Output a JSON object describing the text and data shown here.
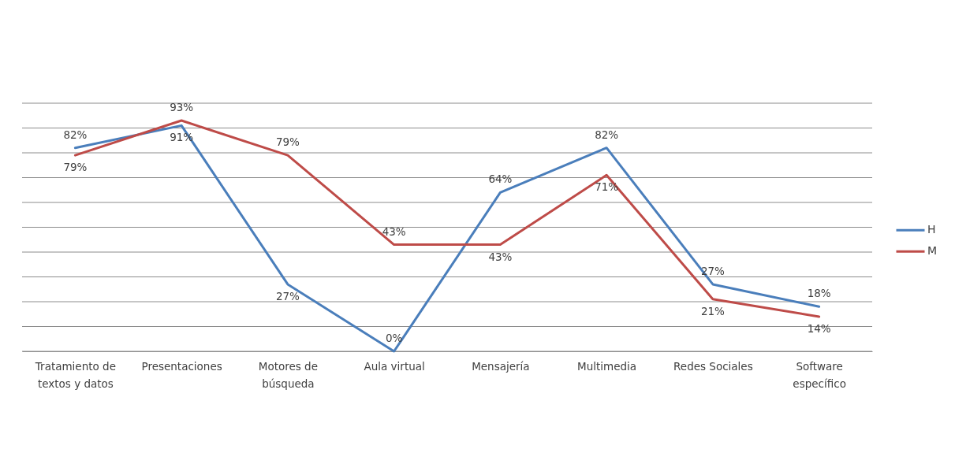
{
  "chart_data": {
    "type": "line",
    "categories": [
      "Tratamiento de textos y datos",
      "Presentaciones",
      "Motores de búsqueda",
      "Aula virtual",
      "Mensajería",
      "Multimedia",
      "Redes Sociales",
      "Software específico"
    ],
    "series": [
      {
        "name": "H",
        "color": "#4a7ebb",
        "values": [
          82,
          91,
          27,
          0,
          64,
          82,
          27,
          18
        ],
        "value_labels": [
          "82%",
          "91%",
          "27%",
          "0%",
          "64%",
          "82%",
          "27%",
          "18%"
        ]
      },
      {
        "name": "M",
        "color": "#be4b48",
        "values": [
          79,
          93,
          79,
          43,
          43,
          71,
          21,
          14
        ],
        "value_labels": [
          "79%",
          "93%",
          "79%",
          "43%",
          "43%",
          "71%",
          "21%",
          "14%"
        ]
      }
    ],
    "ylim": [
      0,
      100
    ],
    "yticks": [
      {
        "value": 0,
        "label": null
      },
      {
        "value": 10,
        "label": null
      },
      {
        "value": 20,
        "label": null
      },
      {
        "value": 30,
        "label": null
      },
      {
        "value": 40,
        "label": null
      },
      {
        "value": 50,
        "label": null
      },
      {
        "value": 60,
        "label": null
      },
      {
        "value": 70,
        "label": null
      },
      {
        "value": 80,
        "label": null
      },
      {
        "value": 90,
        "label": null
      },
      {
        "value": 100,
        "label": null
      }
    ],
    "tick_labels": "x",
    "grid": "y",
    "legend": "right",
    "marker": "none",
    "line_style": "solid"
  }
}
